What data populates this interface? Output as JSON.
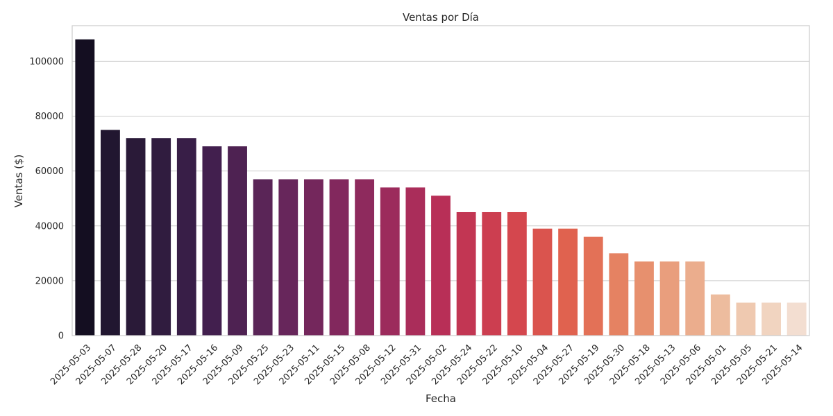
{
  "chart_data": {
    "type": "bar",
    "title": "Ventas por Día",
    "xlabel": "Fecha",
    "ylabel": "Ventas ($)",
    "ylim": [
      0,
      113000
    ],
    "yticks": [
      0,
      20000,
      40000,
      60000,
      80000,
      100000
    ],
    "ytick_labels": [
      "0",
      "20000",
      "40000",
      "60000",
      "80000",
      "100000"
    ],
    "grid": "horizontal",
    "categories": [
      "2025-05-03",
      "2025-05-07",
      "2025-05-28",
      "2025-05-20",
      "2025-05-17",
      "2025-05-16",
      "2025-05-09",
      "2025-05-25",
      "2025-05-23",
      "2025-05-11",
      "2025-05-15",
      "2025-05-08",
      "2025-05-12",
      "2025-05-31",
      "2025-05-02",
      "2025-05-24",
      "2025-05-22",
      "2025-05-10",
      "2025-05-04",
      "2025-05-27",
      "2025-05-19",
      "2025-05-30",
      "2025-05-18",
      "2025-05-13",
      "2025-05-06",
      "2025-05-01",
      "2025-05-05",
      "2025-05-21",
      "2025-05-14"
    ],
    "values": [
      108000,
      75000,
      72000,
      72000,
      72000,
      69000,
      69000,
      57000,
      57000,
      57000,
      57000,
      57000,
      54000,
      54000,
      51000,
      45000,
      45000,
      45000,
      39000,
      39000,
      36000,
      30000,
      27000,
      27000,
      27000,
      15000,
      12000,
      12000,
      12000
    ],
    "colors": [
      "#140e21",
      "#211630",
      "#2a1a38",
      "#301c3f",
      "#381e47",
      "#421f4e",
      "#4e2252",
      "#5a2557",
      "#67265b",
      "#74275c",
      "#82285d",
      "#8e2a5d",
      "#9c2b5c",
      "#aa2d5a",
      "#b82f57",
      "#c23653",
      "#cc3e50",
      "#d4474e",
      "#da544e",
      "#e0624f",
      "#e37157",
      "#e58262",
      "#e7906e",
      "#e99e7d",
      "#ebad8d",
      "#edbc9e",
      "#efc9b0",
      "#f1d4c0",
      "#f3ded1"
    ]
  }
}
